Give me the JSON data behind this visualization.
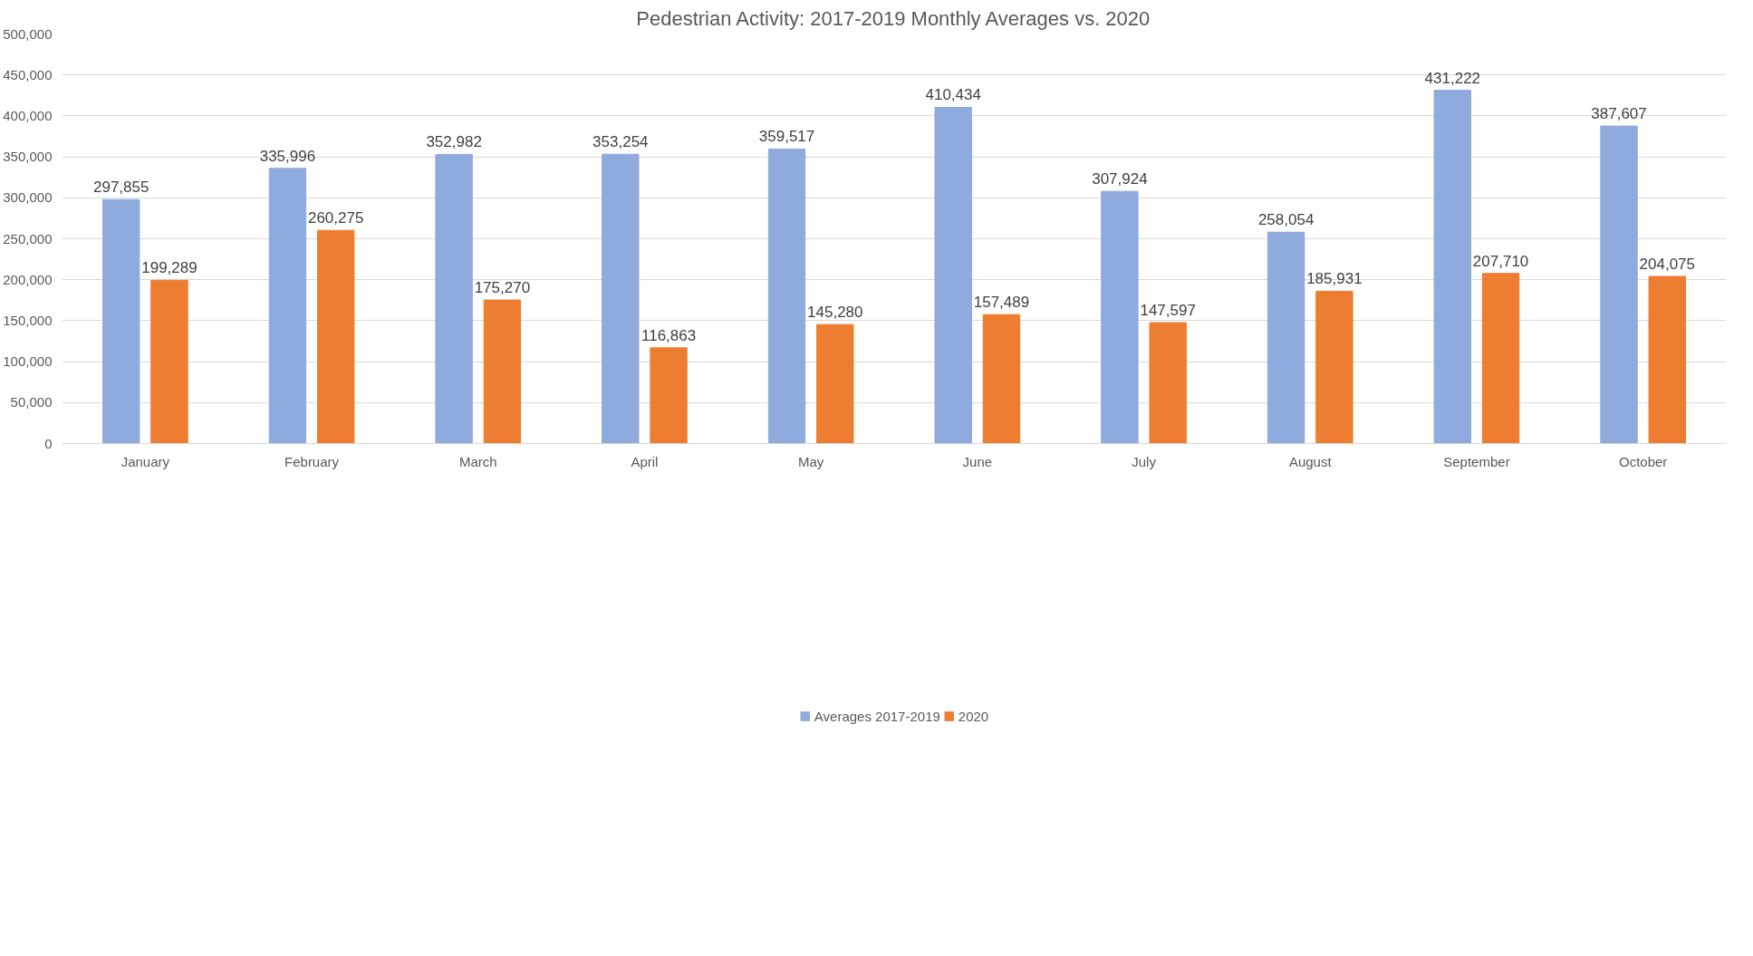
{
  "chart_data": {
    "type": "bar",
    "title": "Pedestrian Activity: 2017-2019 Monthly Averages vs. 2020",
    "categories": [
      "January",
      "February",
      "March",
      "April",
      "May",
      "June",
      "July",
      "August",
      "September",
      "October"
    ],
    "series": [
      {
        "name": "Averages 2017-2019",
        "color": "#8faadc",
        "values": [
          297855,
          335996,
          352982,
          353254,
          359517,
          410434,
          307924,
          258054,
          431222,
          387607
        ],
        "value_labels": [
          "297,855",
          "335,996",
          "352,982",
          "353,254",
          "359,517",
          "410,434",
          "307,924",
          "258,054",
          "431,222",
          "387,607"
        ]
      },
      {
        "name": "2020",
        "color": "#ed7d31",
        "values": [
          199289,
          260275,
          175270,
          116863,
          145280,
          157489,
          147597,
          185931,
          207710,
          204075
        ],
        "value_labels": [
          "199,289",
          "260,275",
          "175,270",
          "116,863",
          "145,280",
          "157,489",
          "147,597",
          "185,931",
          "207,710",
          "204,075"
        ]
      }
    ],
    "ylim": [
      0,
      500000
    ],
    "yticks": [
      {
        "value": 0,
        "label": "0"
      },
      {
        "value": 50000,
        "label": "50,000"
      },
      {
        "value": 100000,
        "label": "100,000"
      },
      {
        "value": 150000,
        "label": "150,000"
      },
      {
        "value": 200000,
        "label": "200,000"
      },
      {
        "value": 250000,
        "label": "250,000"
      },
      {
        "value": 300000,
        "label": "300,000"
      },
      {
        "value": 350000,
        "label": "350,000"
      },
      {
        "value": 400000,
        "label": "400,000"
      },
      {
        "value": 450000,
        "label": "450,000"
      },
      {
        "value": 500000,
        "label": "500,000"
      }
    ],
    "grid": "y",
    "legend": "bottom"
  }
}
